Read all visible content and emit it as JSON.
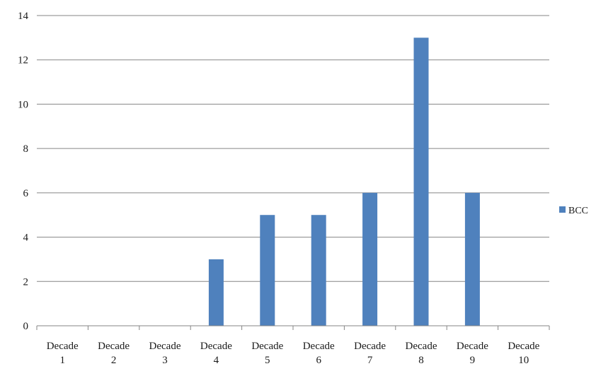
{
  "chart_data": {
    "type": "bar",
    "categories": [
      [
        "Decade",
        "1"
      ],
      [
        "Decade",
        "2"
      ],
      [
        "Decade",
        "3"
      ],
      [
        "Decade",
        "4"
      ],
      [
        "Decade",
        "5"
      ],
      [
        "Decade",
        "6"
      ],
      [
        "Decade",
        "7"
      ],
      [
        "Decade",
        "8"
      ],
      [
        "Decade",
        "9"
      ],
      [
        "Decade",
        "10"
      ]
    ],
    "series": [
      {
        "name": "BCC",
        "color": "#4f81bd",
        "values": [
          0,
          0,
          0,
          3,
          5,
          5,
          6,
          13,
          6,
          0
        ]
      }
    ],
    "ylim": [
      0,
      14
    ],
    "yticks": [
      "0",
      "2",
      "4",
      "6",
      "8",
      "10",
      "12",
      "14"
    ],
    "ytick_values": [
      0,
      2,
      4,
      6,
      8,
      10,
      12,
      14
    ],
    "grid": true,
    "gridline_color": "#868686",
    "legend_position": "right"
  }
}
